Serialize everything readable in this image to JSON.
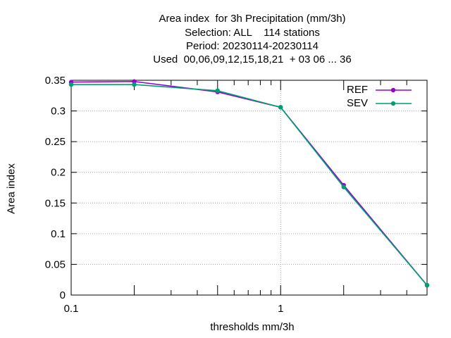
{
  "chart_data": {
    "type": "line",
    "title_lines": [
      "Area index  for 3h Precipitation (mm/3h)",
      "Selection: ALL    114 stations",
      "Period: 20230114-20230114",
      "Used  00,06,09,12,15,18,21  + 03 06 ... 36"
    ],
    "xlabel": "thresholds mm/3h",
    "ylabel": "Area index",
    "x_scale": "log",
    "xlim": [
      0.1,
      5
    ],
    "ylim": [
      0,
      0.35
    ],
    "x_tick_labels": [
      "0.1",
      "1"
    ],
    "y_tick_labels": [
      "0",
      "0.05",
      "0.1",
      "0.15",
      "0.2",
      "0.25",
      "0.3",
      "0.35"
    ],
    "x": [
      0.1,
      0.2,
      0.5,
      1,
      2,
      5
    ],
    "series": [
      {
        "name": "REF",
        "color": "#9400d3",
        "values": [
          0.347,
          0.348,
          0.331,
          0.306,
          0.179,
          0.016
        ]
      },
      {
        "name": "SEV",
        "color": "#009e73",
        "values": [
          0.343,
          0.343,
          0.333,
          0.306,
          0.176,
          0.016
        ]
      }
    ],
    "grid": true,
    "legend_position": "top-right"
  }
}
